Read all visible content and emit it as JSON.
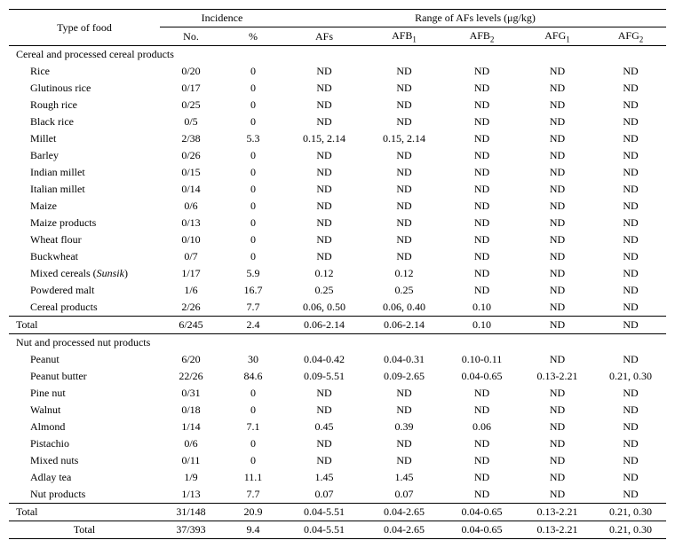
{
  "headers": {
    "type": "Type of food",
    "incidence": "Incidence",
    "range": "Range of AFs levels (μg/kg)",
    "no": "No.",
    "pct": "%",
    "afs": "AFs",
    "afb1": "AFB",
    "afb1_sub": "1",
    "afb2": "AFB",
    "afb2_sub": "2",
    "afg1": "AFG",
    "afg1_sub": "1",
    "afg2": "AFG",
    "afg2_sub": "2"
  },
  "section1": {
    "title": "Cereal and processed cereal products",
    "rows": [
      {
        "name": "Rice",
        "no": "0/20",
        "pct": "0",
        "afs": "ND",
        "afb1": "ND",
        "afb2": "ND",
        "afg1": "ND",
        "afg2": "ND"
      },
      {
        "name": "Glutinous rice",
        "no": "0/17",
        "pct": "0",
        "afs": "ND",
        "afb1": "ND",
        "afb2": "ND",
        "afg1": "ND",
        "afg2": "ND"
      },
      {
        "name": "Rough rice",
        "no": "0/25",
        "pct": "0",
        "afs": "ND",
        "afb1": "ND",
        "afb2": "ND",
        "afg1": "ND",
        "afg2": "ND"
      },
      {
        "name": "Black rice",
        "no": "0/5",
        "pct": "0",
        "afs": "ND",
        "afb1": "ND",
        "afb2": "ND",
        "afg1": "ND",
        "afg2": "ND"
      },
      {
        "name": "Millet",
        "no": "2/38",
        "pct": "5.3",
        "afs": "0.15, 2.14",
        "afb1": "0.15, 2.14",
        "afb2": "ND",
        "afg1": "ND",
        "afg2": "ND"
      },
      {
        "name": "Barley",
        "no": "0/26",
        "pct": "0",
        "afs": "ND",
        "afb1": "ND",
        "afb2": "ND",
        "afg1": "ND",
        "afg2": "ND"
      },
      {
        "name": "Indian millet",
        "no": "0/15",
        "pct": "0",
        "afs": "ND",
        "afb1": "ND",
        "afb2": "ND",
        "afg1": "ND",
        "afg2": "ND"
      },
      {
        "name": "Italian millet",
        "no": "0/14",
        "pct": "0",
        "afs": "ND",
        "afb1": "ND",
        "afb2": "ND",
        "afg1": "ND",
        "afg2": "ND"
      },
      {
        "name": "Maize",
        "no": "0/6",
        "pct": "0",
        "afs": "ND",
        "afb1": "ND",
        "afb2": "ND",
        "afg1": "ND",
        "afg2": "ND"
      },
      {
        "name": "Maize products",
        "no": "0/13",
        "pct": "0",
        "afs": "ND",
        "afb1": "ND",
        "afb2": "ND",
        "afg1": "ND",
        "afg2": "ND"
      },
      {
        "name": "Wheat flour",
        "no": "0/10",
        "pct": "0",
        "afs": "ND",
        "afb1": "ND",
        "afb2": "ND",
        "afg1": "ND",
        "afg2": "ND"
      },
      {
        "name": "Buckwheat",
        "no": "0/7",
        "pct": "0",
        "afs": "ND",
        "afb1": "ND",
        "afb2": "ND",
        "afg1": "ND",
        "afg2": "ND"
      },
      {
        "name": "Mixed cereals (Sunsik)",
        "no": "1/17",
        "pct": "5.9",
        "afs": "0.12",
        "afb1": "0.12",
        "afb2": "ND",
        "afg1": "ND",
        "afg2": "ND"
      },
      {
        "name": "Powdered malt",
        "no": "1/6",
        "pct": "16.7",
        "afs": "0.25",
        "afb1": "0.25",
        "afb2": "ND",
        "afg1": "ND",
        "afg2": "ND"
      },
      {
        "name": "Cereal products",
        "no": "2/26",
        "pct": "7.7",
        "afs": "0.06, 0.50",
        "afb1": "0.06, 0.40",
        "afb2": "0.10",
        "afg1": "ND",
        "afg2": "ND"
      }
    ],
    "total": {
      "label": "Total",
      "no": "6/245",
      "pct": "2.4",
      "afs": "0.06-2.14",
      "afb1": "0.06-2.14",
      "afb2": "0.10",
      "afg1": "ND",
      "afg2": "ND"
    }
  },
  "section2": {
    "title": "Nut and processed nut products",
    "rows": [
      {
        "name": "Peanut",
        "no": "6/20",
        "pct": "30",
        "afs": "0.04-0.42",
        "afb1": "0.04-0.31",
        "afb2": "0.10-0.11",
        "afg1": "ND",
        "afg2": "ND"
      },
      {
        "name": "Peanut butter",
        "no": "22/26",
        "pct": "84.6",
        "afs": "0.09-5.51",
        "afb1": "0.09-2.65",
        "afb2": "0.04-0.65",
        "afg1": "0.13-2.21",
        "afg2": "0.21, 0.30"
      },
      {
        "name": "Pine nut",
        "no": "0/31",
        "pct": "0",
        "afs": "ND",
        "afb1": "ND",
        "afb2": "ND",
        "afg1": "ND",
        "afg2": "ND"
      },
      {
        "name": "Walnut",
        "no": "0/18",
        "pct": "0",
        "afs": "ND",
        "afb1": "ND",
        "afb2": "ND",
        "afg1": "ND",
        "afg2": "ND"
      },
      {
        "name": "Almond",
        "no": "1/14",
        "pct": "7.1",
        "afs": "0.45",
        "afb1": "0.39",
        "afb2": "0.06",
        "afg1": "ND",
        "afg2": "ND"
      },
      {
        "name": "Pistachio",
        "no": "0/6",
        "pct": "0",
        "afs": "ND",
        "afb1": "ND",
        "afb2": "ND",
        "afg1": "ND",
        "afg2": "ND"
      },
      {
        "name": "Mixed nuts",
        "no": "0/11",
        "pct": "0",
        "afs": "ND",
        "afb1": "ND",
        "afb2": "ND",
        "afg1": "ND",
        "afg2": "ND"
      },
      {
        "name": "Adlay tea",
        "no": "1/9",
        "pct": "11.1",
        "afs": "1.45",
        "afb1": "1.45",
        "afb2": "ND",
        "afg1": "ND",
        "afg2": "ND"
      },
      {
        "name": "Nut products",
        "no": "1/13",
        "pct": "7.7",
        "afs": "0.07",
        "afb1": "0.07",
        "afb2": "ND",
        "afg1": "ND",
        "afg2": "ND"
      }
    ],
    "total": {
      "label": "Total",
      "no": "31/148",
      "pct": "20.9",
      "afs": "0.04-5.51",
      "afb1": "0.04-2.65",
      "afb2": "0.04-0.65",
      "afg1": "0.13-2.21",
      "afg2": "0.21, 0.30"
    }
  },
  "grand_total": {
    "label": "Total",
    "no": "37/393",
    "pct": "9.4",
    "afs": "0.04-5.51",
    "afb1": "0.04-2.65",
    "afb2": "0.04-0.65",
    "afg1": "0.13-2.21",
    "afg2": "0.21, 0.30"
  }
}
